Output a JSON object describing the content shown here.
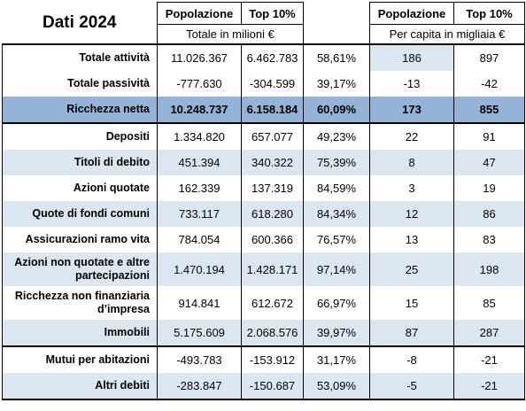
{
  "header": {
    "title": "Dati 2024",
    "columns": [
      "Popolazione",
      "Top 10%",
      "Popolazione",
      "Top 10%"
    ],
    "units_left": "Totale in milioni €",
    "units_right": "Per capita in migliaia €"
  },
  "rows": [
    {
      "label": "Totale attività",
      "cells": [
        "11.026.367",
        "6.462.783",
        "58,61%",
        "186",
        "897"
      ]
    },
    {
      "label": "Totale passività",
      "cells": [
        "-777.630",
        "-304.599",
        "39,17%",
        "-13",
        "-42"
      ]
    },
    {
      "label": "Ricchezza netta",
      "cells": [
        "10.248.737",
        "6.158.184",
        "60,09%",
        "173",
        "855"
      ]
    },
    {
      "label": "Depositi",
      "cells": [
        "1.334.820",
        "657.077",
        "49,23%",
        "22",
        "91"
      ]
    },
    {
      "label": "Titoli di debito",
      "cells": [
        "451.394",
        "340.322",
        "75,39%",
        "8",
        "47"
      ]
    },
    {
      "label": "Azioni quotate",
      "cells": [
        "162.339",
        "137.319",
        "84,59%",
        "3",
        "19"
      ]
    },
    {
      "label": "Quote di fondi comuni",
      "cells": [
        "733.117",
        "618.280",
        "84,34%",
        "12",
        "86"
      ]
    },
    {
      "label": "Assicurazioni ramo vita",
      "cells": [
        "784.054",
        "600.366",
        "76,57%",
        "13",
        "83"
      ]
    },
    {
      "label": "Azioni non quotate e altre partecipazioni",
      "cells": [
        "1.470.194",
        "1.428.171",
        "97,14%",
        "25",
        "198"
      ]
    },
    {
      "label": "Ricchezza non finanziaria d’impresa",
      "cells": [
        "914.841",
        "612.672",
        "66,97%",
        "15",
        "85"
      ]
    },
    {
      "label": "Immobili",
      "cells": [
        "5.175.609",
        "2.068.576",
        "39,97%",
        "87",
        "287"
      ]
    },
    {
      "label": "Mutui per abitazioni",
      "cells": [
        "-493.783",
        "-153.912",
        "31,17%",
        "-8",
        "-21"
      ]
    },
    {
      "label": "Altri debiti",
      "cells": [
        "-283.847",
        "-150.687",
        "53,09%",
        "-5",
        "-21"
      ]
    }
  ]
}
